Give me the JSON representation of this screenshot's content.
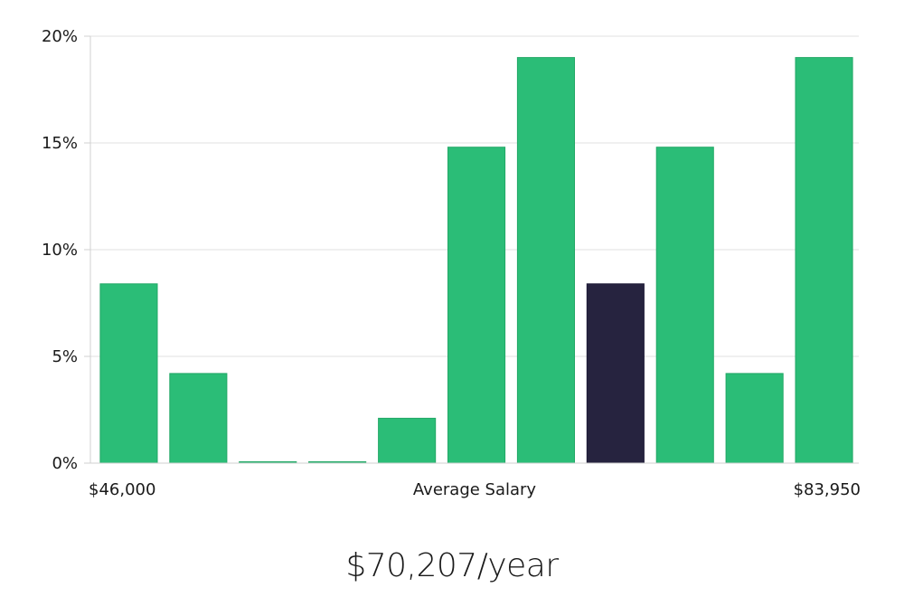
{
  "chart_data": {
    "type": "bar",
    "title": "",
    "xlabel": "Average Salary",
    "ylabel": "",
    "x_range_labels": {
      "min": "$46,000",
      "max": "$83,950"
    },
    "ylim": [
      0,
      20
    ],
    "yticks": [
      0,
      5,
      10,
      15,
      20
    ],
    "ytick_labels": [
      "0%",
      "5%",
      "10%",
      "15%",
      "20%"
    ],
    "grid": true,
    "values": [
      8.4,
      4.2,
      0,
      0,
      2.1,
      14.8,
      19.0,
      8.4,
      14.8,
      4.2,
      19.0
    ],
    "highlight_index": 7,
    "colors": {
      "bar": "#2bbd77",
      "highlight": "#26233f"
    }
  },
  "summary": {
    "salary_label": "$70,207/year"
  }
}
